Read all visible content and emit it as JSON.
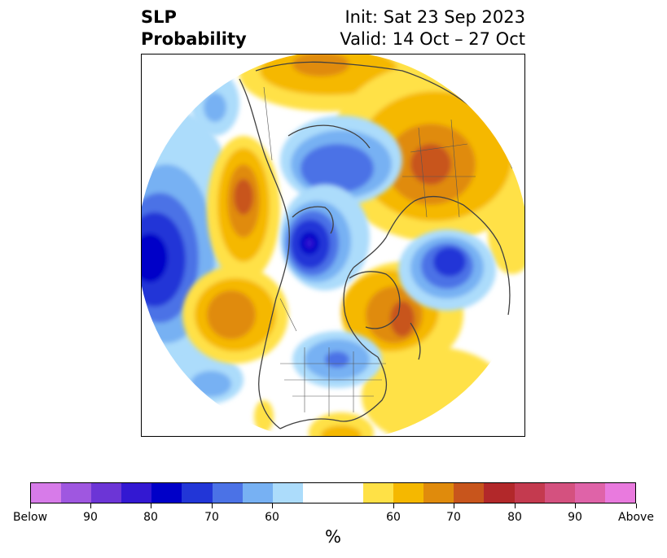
{
  "title": {
    "left_line1": "SLP",
    "left_line2": "Probability",
    "right_line1": "Init: Sat 23 Sep 2023",
    "right_line2": "Valid: 14 Oct – 27 Oct"
  },
  "colorbar": {
    "label": "%",
    "colors": [
      "#d77be9",
      "#9f57e0",
      "#6c35d6",
      "#3318d2",
      "#0000c8",
      "#2236d7",
      "#4b72e6",
      "#77b1f3",
      "#acdcfb",
      "#ffffff",
      "#ffe146",
      "#f5b800",
      "#e08b0c",
      "#c8551c",
      "#b2282a",
      "#c43a4f",
      "#d4517f",
      "#df63a8",
      "#e97ade"
    ],
    "tick_labels": [
      "Below",
      "90",
      "80",
      "70",
      "60",
      "60",
      "70",
      "80",
      "90",
      "Above"
    ]
  },
  "map": {
    "projection": "north-polar-stereographic",
    "field": "sea level pressure tercile probability",
    "anomalies": [
      {
        "region": "North Pacific",
        "category": "below",
        "peak_pct": 80
      },
      {
        "region": "Arctic / Canadian Archipelago",
        "category": "below",
        "peak_pct": 80
      },
      {
        "region": "North Atlantic / Greenland Sea",
        "category": "below",
        "peak_pct": 70
      },
      {
        "region": "Central United States",
        "category": "below",
        "peak_pct": 60
      },
      {
        "region": "Eastern Europe / Western Russia",
        "category": "above",
        "peak_pct": 70
      },
      {
        "region": "Eastern Siberia",
        "category": "above",
        "peak_pct": 65
      },
      {
        "region": "Northeast Pacific (west of North America)",
        "category": "above",
        "peak_pct": 70
      },
      {
        "region": "Greenland / Northwest Atlantic",
        "category": "above",
        "peak_pct": 70
      },
      {
        "region": "Eastern Pacific",
        "category": "above",
        "peak_pct": 65
      },
      {
        "region": "Caribbean / Gulf of Mexico",
        "category": "above",
        "peak_pct": 60
      }
    ]
  }
}
